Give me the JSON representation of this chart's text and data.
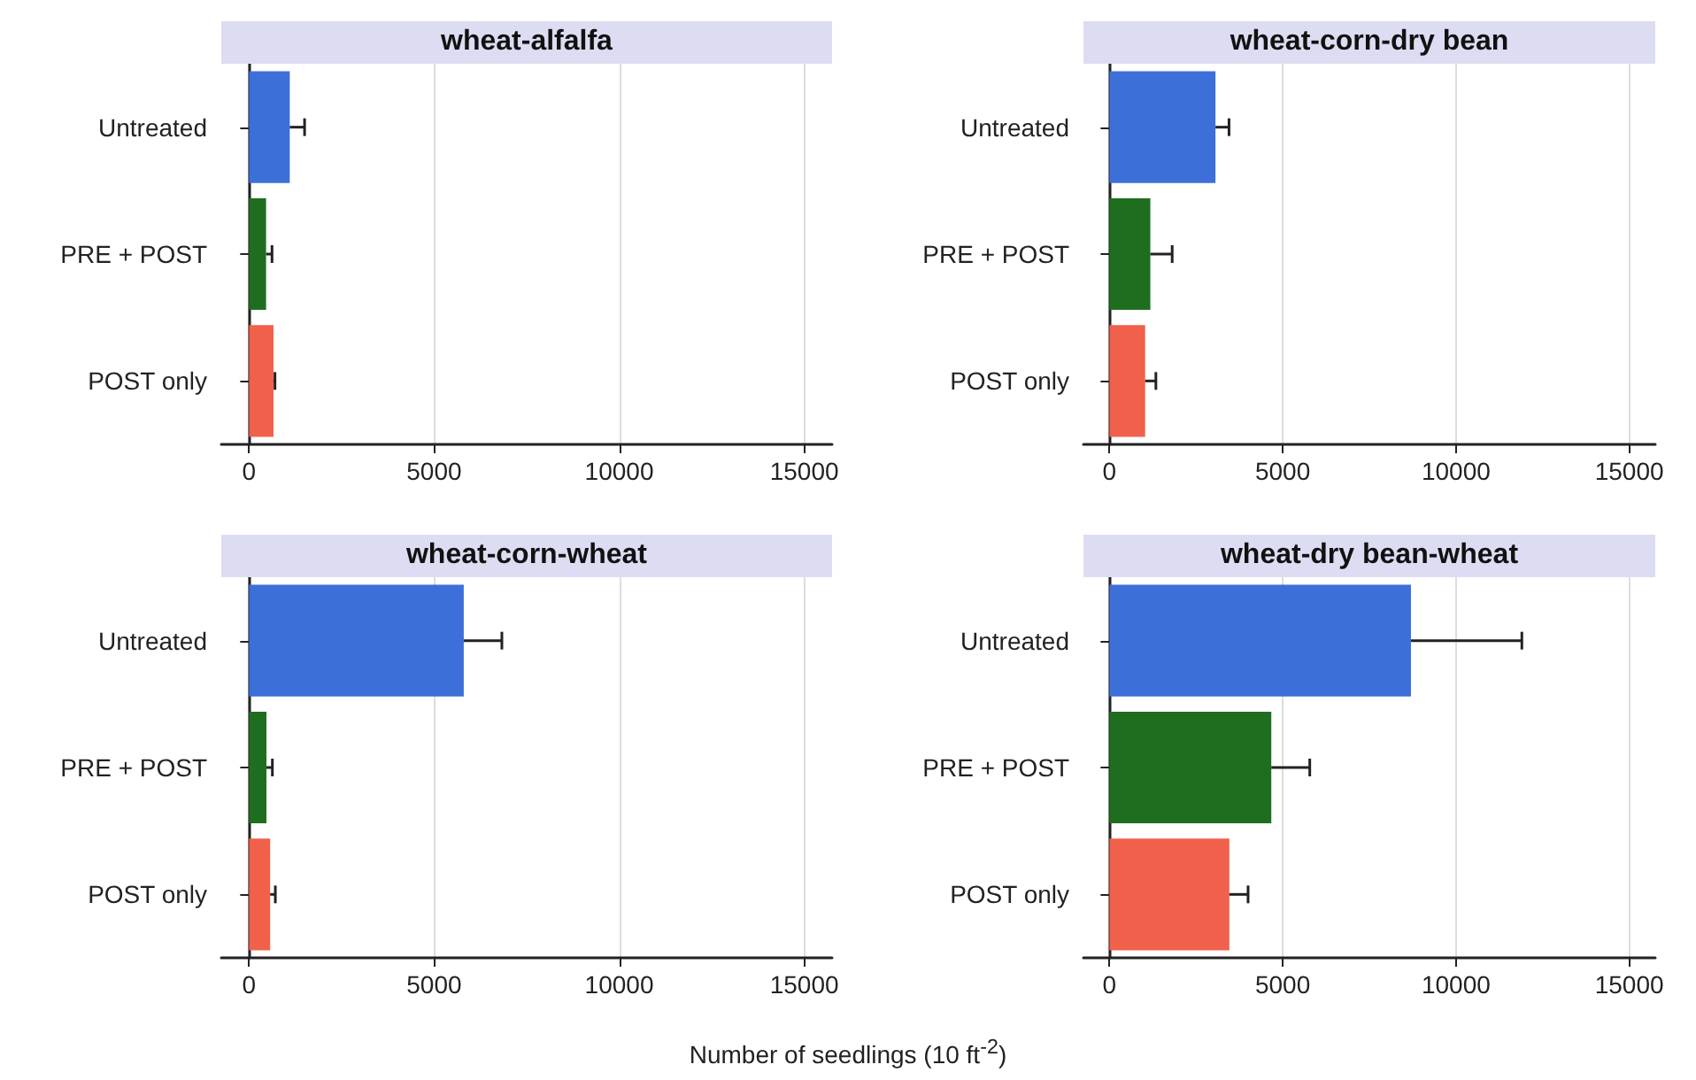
{
  "chart_data": [
    {
      "type": "bar",
      "orientation": "horizontal",
      "title": "wheat-alfalfa",
      "categories": [
        "Untreated",
        "PRE + POST",
        "POST only"
      ],
      "values": [
        1100,
        460,
        660
      ],
      "colors": [
        "#3d6fd8",
        "#1f6e1f",
        "#f0604a"
      ],
      "errors": [
        [
          1100,
          1500
        ],
        [
          460,
          620
        ],
        [
          660,
          700
        ]
      ],
      "xlim": [
        -750,
        15750
      ],
      "xticks": [
        0,
        5000,
        10000,
        15000
      ],
      "grid": "x"
    },
    {
      "type": "bar",
      "orientation": "horizontal",
      "title": "wheat-corn-dry bean",
      "categories": [
        "Untreated",
        "PRE + POST",
        "POST only"
      ],
      "values": [
        3060,
        1180,
        1030
      ],
      "colors": [
        "#3d6fd8",
        "#1f6e1f",
        "#f0604a"
      ],
      "errors": [
        [
          3060,
          3450
        ],
        [
          1180,
          1810
        ],
        [
          1030,
          1340
        ]
      ],
      "xlim": [
        -750,
        15750
      ],
      "xticks": [
        0,
        5000,
        10000,
        15000
      ],
      "grid": "x"
    },
    {
      "type": "bar",
      "orientation": "horizontal",
      "title": "wheat-corn-wheat",
      "categories": [
        "Untreated",
        "PRE + POST",
        "POST only"
      ],
      "values": [
        5800,
        470,
        570
      ],
      "colors": [
        "#3d6fd8",
        "#1f6e1f",
        "#f0604a"
      ],
      "errors": [
        [
          5800,
          6830
        ],
        [
          470,
          630
        ],
        [
          570,
          710
        ]
      ],
      "xlim": [
        -750,
        15750
      ],
      "xticks": [
        0,
        5000,
        10000,
        15000
      ],
      "grid": "x"
    },
    {
      "type": "bar",
      "orientation": "horizontal",
      "title": "wheat-dry bean-wheat",
      "xlabel": "Number of seedlings (10 ft$^{-2}$)",
      "categories": [
        "Untreated",
        "PRE + POST",
        "POST only"
      ],
      "values": [
        8700,
        4670,
        3460
      ],
      "colors": [
        "#3d6fd8",
        "#1f6e1f",
        "#f0604a"
      ],
      "errors": [
        [
          8700,
          11900
        ],
        [
          4670,
          5780
        ],
        [
          3460,
          4000
        ]
      ],
      "xlim": [
        -750,
        15750
      ],
      "xticks": [
        0,
        5000,
        10000,
        15000
      ],
      "grid": "x"
    }
  ]
}
